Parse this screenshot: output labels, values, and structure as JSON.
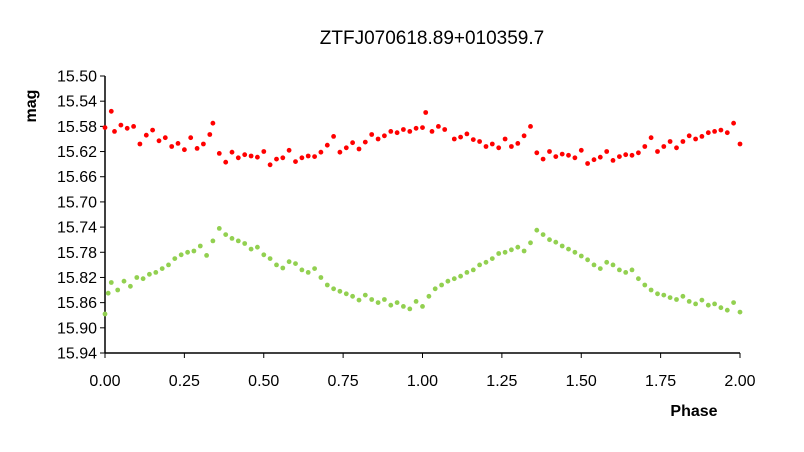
{
  "chart_data": {
    "type": "scatter",
    "title": "ZTFJ070618.89+010359.7",
    "xlabel": "Phase",
    "ylabel": "mag",
    "xlim": [
      0.0,
      2.0
    ],
    "ylim": [
      15.5,
      15.94
    ],
    "y_inverted": true,
    "grid": false,
    "x_ticks": [
      "0.00",
      "0.25",
      "0.50",
      "0.75",
      "1.00",
      "1.25",
      "1.50",
      "1.75",
      "2.00"
    ],
    "y_ticks": [
      "15.50",
      "15.54",
      "15.58",
      "15.62",
      "15.66",
      "15.70",
      "15.74",
      "15.78",
      "15.82",
      "15.86",
      "15.90",
      "15.94"
    ],
    "series": [
      {
        "color": "#ff0000",
        "points": [
          [
            0.0,
            15.582
          ],
          [
            0.02,
            15.556
          ],
          [
            0.03,
            15.588
          ],
          [
            0.05,
            15.578
          ],
          [
            0.07,
            15.583
          ],
          [
            0.09,
            15.58
          ],
          [
            0.11,
            15.608
          ],
          [
            0.13,
            15.594
          ],
          [
            0.15,
            15.586
          ],
          [
            0.17,
            15.603
          ],
          [
            0.19,
            15.598
          ],
          [
            0.21,
            15.612
          ],
          [
            0.23,
            15.607
          ],
          [
            0.25,
            15.617
          ],
          [
            0.27,
            15.598
          ],
          [
            0.29,
            15.615
          ],
          [
            0.31,
            15.608
          ],
          [
            0.33,
            15.593
          ],
          [
            0.34,
            15.575
          ],
          [
            0.36,
            15.623
          ],
          [
            0.38,
            15.637
          ],
          [
            0.4,
            15.621
          ],
          [
            0.42,
            15.63
          ],
          [
            0.44,
            15.625
          ],
          [
            0.46,
            15.627
          ],
          [
            0.48,
            15.629
          ],
          [
            0.5,
            15.62
          ],
          [
            0.52,
            15.641
          ],
          [
            0.54,
            15.632
          ],
          [
            0.56,
            15.63
          ],
          [
            0.58,
            15.618
          ],
          [
            0.6,
            15.636
          ],
          [
            0.62,
            15.63
          ],
          [
            0.64,
            15.627
          ],
          [
            0.66,
            15.628
          ],
          [
            0.68,
            15.621
          ],
          [
            0.7,
            15.61
          ],
          [
            0.72,
            15.596
          ],
          [
            0.74,
            15.621
          ],
          [
            0.76,
            15.614
          ],
          [
            0.78,
            15.606
          ],
          [
            0.8,
            15.616
          ],
          [
            0.82,
            15.605
          ],
          [
            0.84,
            15.593
          ],
          [
            0.86,
            15.6
          ],
          [
            0.88,
            15.595
          ],
          [
            0.9,
            15.588
          ],
          [
            0.92,
            15.59
          ],
          [
            0.94,
            15.585
          ],
          [
            0.96,
            15.588
          ],
          [
            0.98,
            15.583
          ],
          [
            1.0,
            15.582
          ],
          [
            1.01,
            15.558
          ],
          [
            1.03,
            15.588
          ],
          [
            1.05,
            15.58
          ],
          [
            1.07,
            15.585
          ],
          [
            1.1,
            15.6
          ],
          [
            1.12,
            15.597
          ],
          [
            1.14,
            15.592
          ],
          [
            1.16,
            15.601
          ],
          [
            1.18,
            15.604
          ],
          [
            1.2,
            15.612
          ],
          [
            1.22,
            15.608
          ],
          [
            1.24,
            15.614
          ],
          [
            1.26,
            15.6
          ],
          [
            1.28,
            15.612
          ],
          [
            1.3,
            15.607
          ],
          [
            1.32,
            15.595
          ],
          [
            1.34,
            15.58
          ],
          [
            1.36,
            15.622
          ],
          [
            1.38,
            15.632
          ],
          [
            1.4,
            15.62
          ],
          [
            1.42,
            15.628
          ],
          [
            1.44,
            15.624
          ],
          [
            1.46,
            15.626
          ],
          [
            1.48,
            15.63
          ],
          [
            1.5,
            15.618
          ],
          [
            1.52,
            15.639
          ],
          [
            1.54,
            15.633
          ],
          [
            1.56,
            15.629
          ],
          [
            1.58,
            15.62
          ],
          [
            1.6,
            15.634
          ],
          [
            1.62,
            15.628
          ],
          [
            1.64,
            15.625
          ],
          [
            1.66,
            15.626
          ],
          [
            1.68,
            15.622
          ],
          [
            1.7,
            15.612
          ],
          [
            1.72,
            15.598
          ],
          [
            1.74,
            15.62
          ],
          [
            1.76,
            15.612
          ],
          [
            1.78,
            15.604
          ],
          [
            1.8,
            15.614
          ],
          [
            1.82,
            15.604
          ],
          [
            1.84,
            15.595
          ],
          [
            1.86,
            15.6
          ],
          [
            1.88,
            15.596
          ],
          [
            1.9,
            15.59
          ],
          [
            1.92,
            15.588
          ],
          [
            1.94,
            15.586
          ],
          [
            1.96,
            15.59
          ],
          [
            1.98,
            15.575
          ],
          [
            2.0,
            15.608
          ]
        ]
      },
      {
        "color": "#92d050",
        "points": [
          [
            0.0,
            15.878
          ],
          [
            0.01,
            15.845
          ],
          [
            0.02,
            15.828
          ],
          [
            0.04,
            15.84
          ],
          [
            0.06,
            15.826
          ],
          [
            0.08,
            15.834
          ],
          [
            0.1,
            15.82
          ],
          [
            0.12,
            15.822
          ],
          [
            0.14,
            15.815
          ],
          [
            0.16,
            15.812
          ],
          [
            0.18,
            15.806
          ],
          [
            0.2,
            15.8
          ],
          [
            0.22,
            15.79
          ],
          [
            0.24,
            15.784
          ],
          [
            0.26,
            15.78
          ],
          [
            0.28,
            15.778
          ],
          [
            0.3,
            15.77
          ],
          [
            0.32,
            15.785
          ],
          [
            0.34,
            15.762
          ],
          [
            0.36,
            15.742
          ],
          [
            0.38,
            15.752
          ],
          [
            0.4,
            15.758
          ],
          [
            0.42,
            15.762
          ],
          [
            0.44,
            15.766
          ],
          [
            0.46,
            15.775
          ],
          [
            0.48,
            15.772
          ],
          [
            0.5,
            15.784
          ],
          [
            0.52,
            15.79
          ],
          [
            0.54,
            15.8
          ],
          [
            0.56,
            15.805
          ],
          [
            0.58,
            15.795
          ],
          [
            0.6,
            15.798
          ],
          [
            0.62,
            15.808
          ],
          [
            0.64,
            15.812
          ],
          [
            0.66,
            15.806
          ],
          [
            0.68,
            15.82
          ],
          [
            0.7,
            15.832
          ],
          [
            0.72,
            15.838
          ],
          [
            0.74,
            15.842
          ],
          [
            0.76,
            15.846
          ],
          [
            0.78,
            15.85
          ],
          [
            0.8,
            15.856
          ],
          [
            0.82,
            15.848
          ],
          [
            0.84,
            15.855
          ],
          [
            0.86,
            15.86
          ],
          [
            0.88,
            15.855
          ],
          [
            0.9,
            15.864
          ],
          [
            0.92,
            15.86
          ],
          [
            0.94,
            15.866
          ],
          [
            0.96,
            15.87
          ],
          [
            0.98,
            15.858
          ],
          [
            1.0,
            15.866
          ],
          [
            1.02,
            15.85
          ],
          [
            1.04,
            15.838
          ],
          [
            1.06,
            15.832
          ],
          [
            1.08,
            15.826
          ],
          [
            1.1,
            15.822
          ],
          [
            1.12,
            15.818
          ],
          [
            1.14,
            15.812
          ],
          [
            1.16,
            15.808
          ],
          [
            1.18,
            15.8
          ],
          [
            1.2,
            15.796
          ],
          [
            1.22,
            15.79
          ],
          [
            1.24,
            15.782
          ],
          [
            1.26,
            15.78
          ],
          [
            1.28,
            15.776
          ],
          [
            1.3,
            15.772
          ],
          [
            1.32,
            15.778
          ],
          [
            1.34,
            15.765
          ],
          [
            1.36,
            15.745
          ],
          [
            1.38,
            15.752
          ],
          [
            1.4,
            15.76
          ],
          [
            1.42,
            15.764
          ],
          [
            1.44,
            15.77
          ],
          [
            1.46,
            15.775
          ],
          [
            1.48,
            15.78
          ],
          [
            1.5,
            15.786
          ],
          [
            1.52,
            15.792
          ],
          [
            1.54,
            15.8
          ],
          [
            1.56,
            15.806
          ],
          [
            1.58,
            15.796
          ],
          [
            1.6,
            15.8
          ],
          [
            1.62,
            15.808
          ],
          [
            1.64,
            15.812
          ],
          [
            1.66,
            15.808
          ],
          [
            1.68,
            15.822
          ],
          [
            1.7,
            15.832
          ],
          [
            1.72,
            15.84
          ],
          [
            1.74,
            15.846
          ],
          [
            1.76,
            15.848
          ],
          [
            1.78,
            15.852
          ],
          [
            1.8,
            15.855
          ],
          [
            1.82,
            15.85
          ],
          [
            1.84,
            15.858
          ],
          [
            1.86,
            15.862
          ],
          [
            1.88,
            15.856
          ],
          [
            1.9,
            15.864
          ],
          [
            1.92,
            15.862
          ],
          [
            1.94,
            15.868
          ],
          [
            1.96,
            15.872
          ],
          [
            1.98,
            15.86
          ],
          [
            2.0,
            15.875
          ]
        ]
      }
    ]
  }
}
